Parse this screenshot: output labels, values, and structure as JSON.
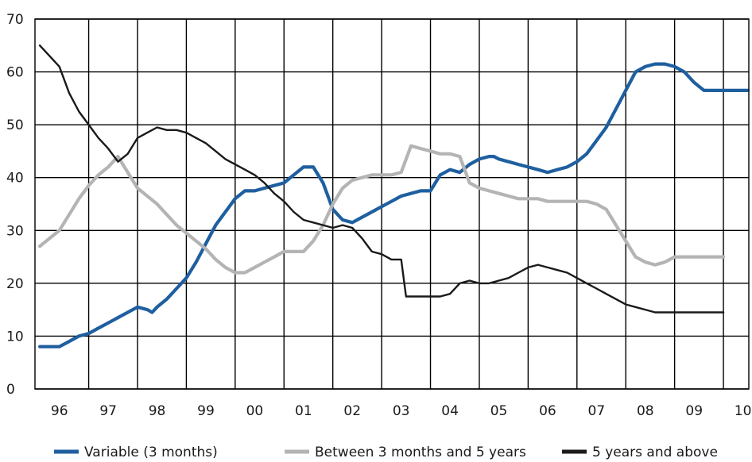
{
  "chart_data": {
    "type": "line",
    "title": "",
    "xlabel": "",
    "ylabel": "",
    "ylim": [
      0,
      70
    ],
    "yticks": [
      0,
      10,
      20,
      30,
      40,
      50,
      60,
      70
    ],
    "xlim": [
      1995.9,
      2010.52
    ],
    "x_tick_labels": [
      "96",
      "97",
      "98",
      "99",
      "00",
      "01",
      "02",
      "03",
      "04",
      "05",
      "06",
      "07",
      "08",
      "09",
      "10"
    ],
    "x_tick_values": [
      1996.4,
      1997.4,
      1998.4,
      1999.4,
      2000.4,
      2001.4,
      2002.4,
      2003.4,
      2004.4,
      2005.4,
      2006.4,
      2007.4,
      2008.4,
      2009.4,
      2010.4
    ],
    "grid": true,
    "legend_position": "bottom",
    "series": [
      {
        "name": "Variable (3 months)",
        "color": "#1f5fa0",
        "x": [
          1996.0,
          1996.2,
          1996.4,
          1996.6,
          1996.8,
          1997.0,
          1997.2,
          1997.4,
          1997.6,
          1997.8,
          1998.0,
          1998.2,
          1998.3,
          1998.4,
          1998.6,
          1998.8,
          1999.0,
          1999.2,
          1999.4,
          1999.6,
          1999.8,
          2000.0,
          2000.2,
          2000.4,
          2000.6,
          2000.8,
          2001.0,
          2001.2,
          2001.4,
          2001.6,
          2001.8,
          2002.0,
          2002.2,
          2002.4,
          2002.6,
          2002.8,
          2003.0,
          2003.2,
          2003.4,
          2003.6,
          2003.8,
          2004.0,
          2004.2,
          2004.4,
          2004.6,
          2004.8,
          2005.0,
          2005.2,
          2005.3,
          2005.4,
          2005.6,
          2005.8,
          2006.0,
          2006.2,
          2006.4,
          2006.6,
          2006.8,
          2007.0,
          2007.2,
          2007.4,
          2007.6,
          2007.8,
          2008.0,
          2008.2,
          2008.4,
          2008.6,
          2008.8,
          2009.0,
          2009.2,
          2009.4,
          2009.6,
          2009.8,
          2010.0,
          2010.2,
          2010.4,
          2010.5
        ],
        "values": [
          8,
          8,
          8,
          9,
          10,
          10.5,
          11.5,
          12.5,
          13.5,
          14.5,
          15.5,
          15,
          14.5,
          15.5,
          17,
          19,
          21,
          24,
          27.5,
          31,
          33.5,
          36,
          37.5,
          37.5,
          38,
          38.5,
          39,
          40.5,
          42,
          42,
          39,
          34,
          32,
          31.5,
          32.5,
          33.5,
          34.5,
          35.5,
          36.5,
          37,
          37.5,
          37.5,
          40.5,
          41.5,
          41,
          42.5,
          43.5,
          44,
          44,
          43.5,
          43,
          42.5,
          42,
          41.5,
          41,
          41.5,
          42,
          43,
          44.5,
          47,
          49.5,
          53,
          56.5,
          60,
          61,
          61.5,
          61.5,
          61,
          60,
          58,
          56.5,
          56.5,
          56.5,
          56.5,
          56.5,
          56.5
        ]
      },
      {
        "name": "Between 3 months and 5 years",
        "color": "#b4b4b4",
        "x": [
          1996.0,
          1996.2,
          1996.4,
          1996.6,
          1996.8,
          1997.0,
          1997.2,
          1997.4,
          1997.6,
          1997.8,
          1998.0,
          1998.2,
          1998.4,
          1998.6,
          1998.8,
          1999.0,
          1999.2,
          1999.4,
          1999.6,
          1999.8,
          2000.0,
          2000.2,
          2000.4,
          2000.6,
          2000.8,
          2001.0,
          2001.2,
          2001.4,
          2001.6,
          2001.8,
          2002.0,
          2002.2,
          2002.4,
          2002.6,
          2002.8,
          2003.0,
          2003.2,
          2003.4,
          2003.6,
          2003.8,
          2004.0,
          2004.2,
          2004.4,
          2004.6,
          2004.8,
          2005.0,
          2005.2,
          2005.4,
          2005.6,
          2005.8,
          2006.0,
          2006.2,
          2006.4,
          2006.6,
          2006.8,
          2007.0,
          2007.2,
          2007.4,
          2007.6,
          2007.8,
          2008.0,
          2008.2,
          2008.4,
          2008.6,
          2008.8,
          2009.0,
          2009.2,
          2009.4,
          2009.6,
          2009.8,
          2010.0
        ],
        "values": [
          27,
          28.5,
          30,
          33,
          36,
          38.5,
          40.5,
          42,
          44,
          41,
          38,
          36.5,
          35,
          33,
          31,
          29.5,
          28,
          26.5,
          24.5,
          23,
          22,
          22,
          23,
          24,
          25,
          26,
          26,
          26,
          28,
          31,
          35,
          38,
          39.5,
          40,
          40.5,
          40.5,
          40.5,
          41,
          46,
          45.5,
          45,
          44.5,
          44.5,
          44,
          39,
          38,
          37.5,
          37,
          36.5,
          36,
          36,
          36,
          35.5,
          35.5,
          35.5,
          35.5,
          35.5,
          35,
          34,
          31,
          28,
          25,
          24,
          23.5,
          24,
          25,
          25,
          25,
          25,
          25,
          25
        ]
      },
      {
        "name": "5 years and above",
        "color": "#1a1a1a",
        "x": [
          1996.0,
          1996.2,
          1996.4,
          1996.6,
          1996.8,
          1997.0,
          1997.2,
          1997.4,
          1997.6,
          1997.8,
          1998.0,
          1998.2,
          1998.4,
          1998.6,
          1998.8,
          1999.0,
          1999.2,
          1999.4,
          1999.6,
          1999.8,
          2000.0,
          2000.2,
          2000.4,
          2000.6,
          2000.8,
          2001.0,
          2001.2,
          2001.4,
          2001.6,
          2001.8,
          2002.0,
          2002.2,
          2002.4,
          2002.6,
          2002.8,
          2003.0,
          2003.2,
          2003.4,
          2003.5,
          2003.6,
          2003.8,
          2004.0,
          2004.2,
          2004.4,
          2004.6,
          2004.8,
          2005.0,
          2005.2,
          2005.4,
          2005.6,
          2005.8,
          2006.0,
          2006.2,
          2006.4,
          2006.6,
          2006.8,
          2007.0,
          2007.2,
          2007.4,
          2007.6,
          2007.8,
          2008.0,
          2008.2,
          2008.4,
          2008.6,
          2008.8,
          2009.0,
          2009.2,
          2009.4,
          2009.6,
          2009.8,
          2010.0
        ],
        "values": [
          65,
          63,
          61,
          56,
          52.5,
          50,
          47.5,
          45.5,
          43,
          44.5,
          47.5,
          48.5,
          49.5,
          49,
          49,
          48.5,
          47.5,
          46.5,
          45,
          43.5,
          42.5,
          41.5,
          40.5,
          39,
          37,
          35.5,
          33.5,
          32,
          31.5,
          31,
          30.5,
          31,
          30.5,
          28.5,
          26,
          25.5,
          24.5,
          24.5,
          17.5,
          17.5,
          17.5,
          17.5,
          17.5,
          18,
          20,
          20.5,
          20,
          20,
          20.5,
          21,
          22,
          23,
          23.5,
          23,
          22.5,
          22,
          21,
          20,
          19,
          18,
          17,
          16,
          15.5,
          15,
          14.5,
          14.5,
          14.5,
          14.5,
          14.5,
          14.5,
          14.5,
          14.5
        ]
      }
    ]
  }
}
